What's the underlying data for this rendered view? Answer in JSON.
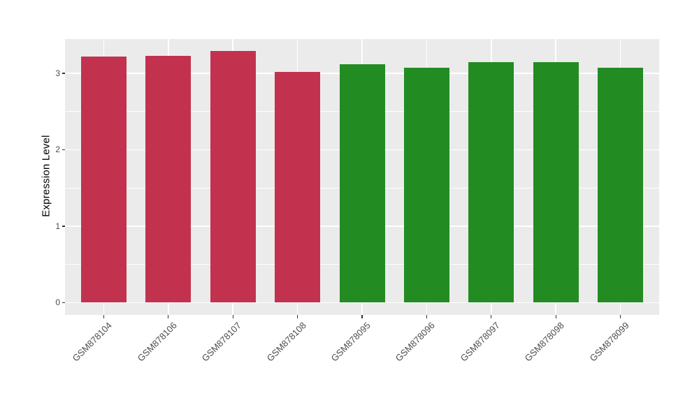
{
  "chart_data": {
    "type": "bar",
    "title": "",
    "xlabel": "",
    "ylabel": "Expression Level",
    "categories": [
      "GSM878104",
      "GSM878106",
      "GSM878107",
      "GSM878108",
      "GSM878095",
      "GSM878096",
      "GSM878097",
      "GSM878098",
      "GSM878099"
    ],
    "values": [
      3.22,
      3.23,
      3.29,
      3.02,
      3.12,
      3.07,
      3.15,
      3.15,
      3.07
    ],
    "bar_colors": [
      "#C2324E",
      "#C2324E",
      "#C2324E",
      "#C2324E",
      "#228C22",
      "#228C22",
      "#228C22",
      "#228C22",
      "#228C22"
    ],
    "group_colors": {
      "red": "#C2324E",
      "green": "#228C22"
    },
    "y_ticks": [
      0,
      1,
      2,
      3
    ],
    "y_minor_ticks": [
      0.5,
      1.5,
      2.5
    ],
    "ylim": [
      -0.164,
      3.447
    ],
    "bar_width_units": 0.7,
    "x_tick_label_angle": 45,
    "grid": true,
    "legend_position": "none",
    "panel_background": "#EBEBEB",
    "grid_color": "#FFFFFF",
    "axis_text_color": "#4D4D4D",
    "axis_title_color": "#000000"
  }
}
